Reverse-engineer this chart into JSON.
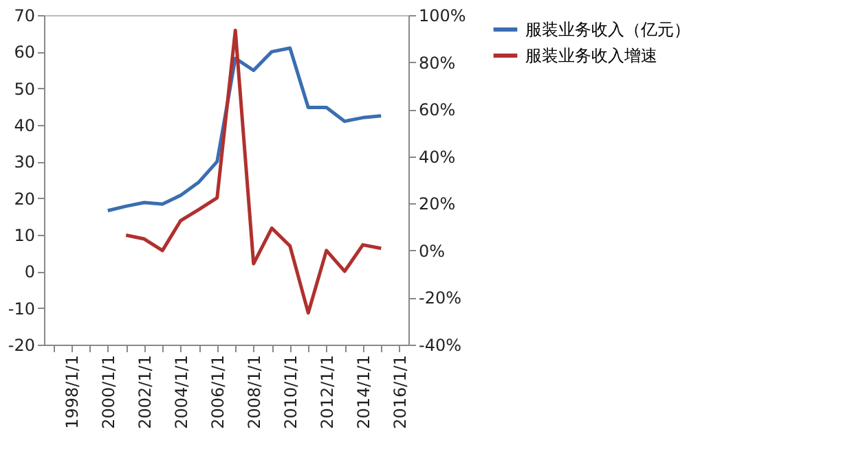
{
  "chart_data": {
    "type": "line",
    "categories": [
      null,
      "1998/1/1",
      null,
      "2000/1/1",
      null,
      "2002/1/1",
      null,
      "2004/1/1",
      null,
      "2006/1/1",
      null,
      "2008/1/1",
      null,
      "2010/1/1",
      null,
      "2012/1/1",
      null,
      "2014/1/1",
      null,
      "2016/1/1"
    ],
    "series": [
      {
        "name": "服装业务收入（亿元）",
        "color": "#3a6eb0",
        "values": [
          null,
          null,
          null,
          16.6,
          17.8,
          18.8,
          18.4,
          20.8,
          24.4,
          30,
          58.2,
          54.9,
          60,
          61,
          44.8,
          44.8,
          41,
          42,
          42.5,
          null
        ]
      },
      {
        "name": "服装业务收入增速",
        "color": "#b0302e",
        "axis": "y2",
        "values": [
          null,
          null,
          null,
          null,
          6.5,
          4.9,
          0,
          12.7,
          17.4,
          22.4,
          93.5,
          -5.6,
          9.5,
          1.9,
          -26.5,
          0,
          -8.8,
          2.4,
          0.9,
          null
        ]
      }
    ],
    "ylim": [
      -20,
      70
    ],
    "yticks": [
      -20,
      -10,
      0,
      10,
      20,
      30,
      40,
      50,
      60,
      70
    ],
    "y2lim": [
      -40,
      100
    ],
    "y2ticks": [
      {
        "value": -40,
        "label": "-40%"
      },
      {
        "value": -20,
        "label": "-20%"
      },
      {
        "value": 0,
        "label": "0%"
      },
      {
        "value": 20,
        "label": "20%"
      },
      {
        "value": 40,
        "label": "40%"
      },
      {
        "value": 60,
        "label": "60%"
      },
      {
        "value": 80,
        "label": "80%"
      },
      {
        "value": 100,
        "label": "100%"
      }
    ],
    "grid": false,
    "legend": "right",
    "marker": "none",
    "line_style": "solid"
  }
}
